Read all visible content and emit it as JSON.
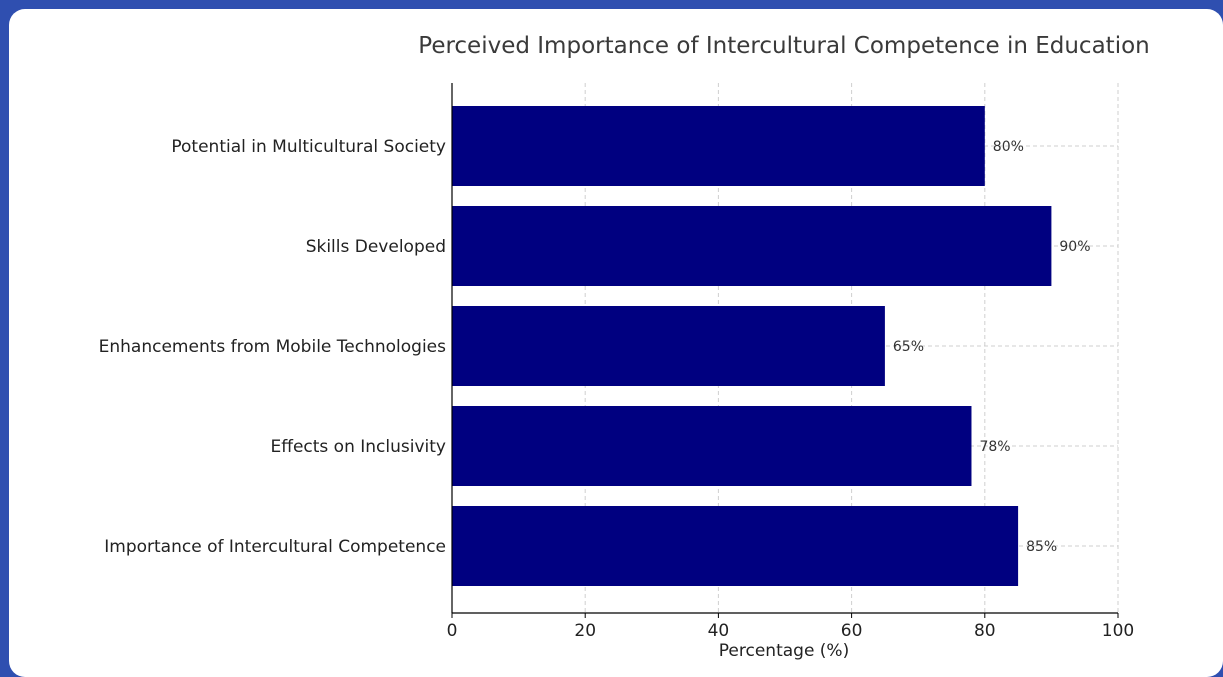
{
  "chart_data": {
    "type": "bar",
    "orientation": "horizontal",
    "title": "Perceived Importance of Intercultural Competence in Education",
    "xlabel": "Percentage (%)",
    "ylabel": "",
    "categories": [
      "Potential in Multicultural Society",
      "Skills Developed",
      "Enhancements from Mobile Technologies",
      "Effects on Inclusivity",
      "Importance of Intercultural Competence"
    ],
    "values": [
      80,
      90,
      65,
      78,
      85
    ],
    "data_labels": [
      "80%",
      "90%",
      "65%",
      "78%",
      "85%"
    ],
    "xlim": [
      0,
      100
    ],
    "xticks": [
      0,
      20,
      40,
      60,
      80,
      100
    ],
    "xtick_labels": [
      "0",
      "20",
      "40",
      "60",
      "80",
      "100"
    ],
    "grid": true,
    "bar_color": "#000080"
  }
}
